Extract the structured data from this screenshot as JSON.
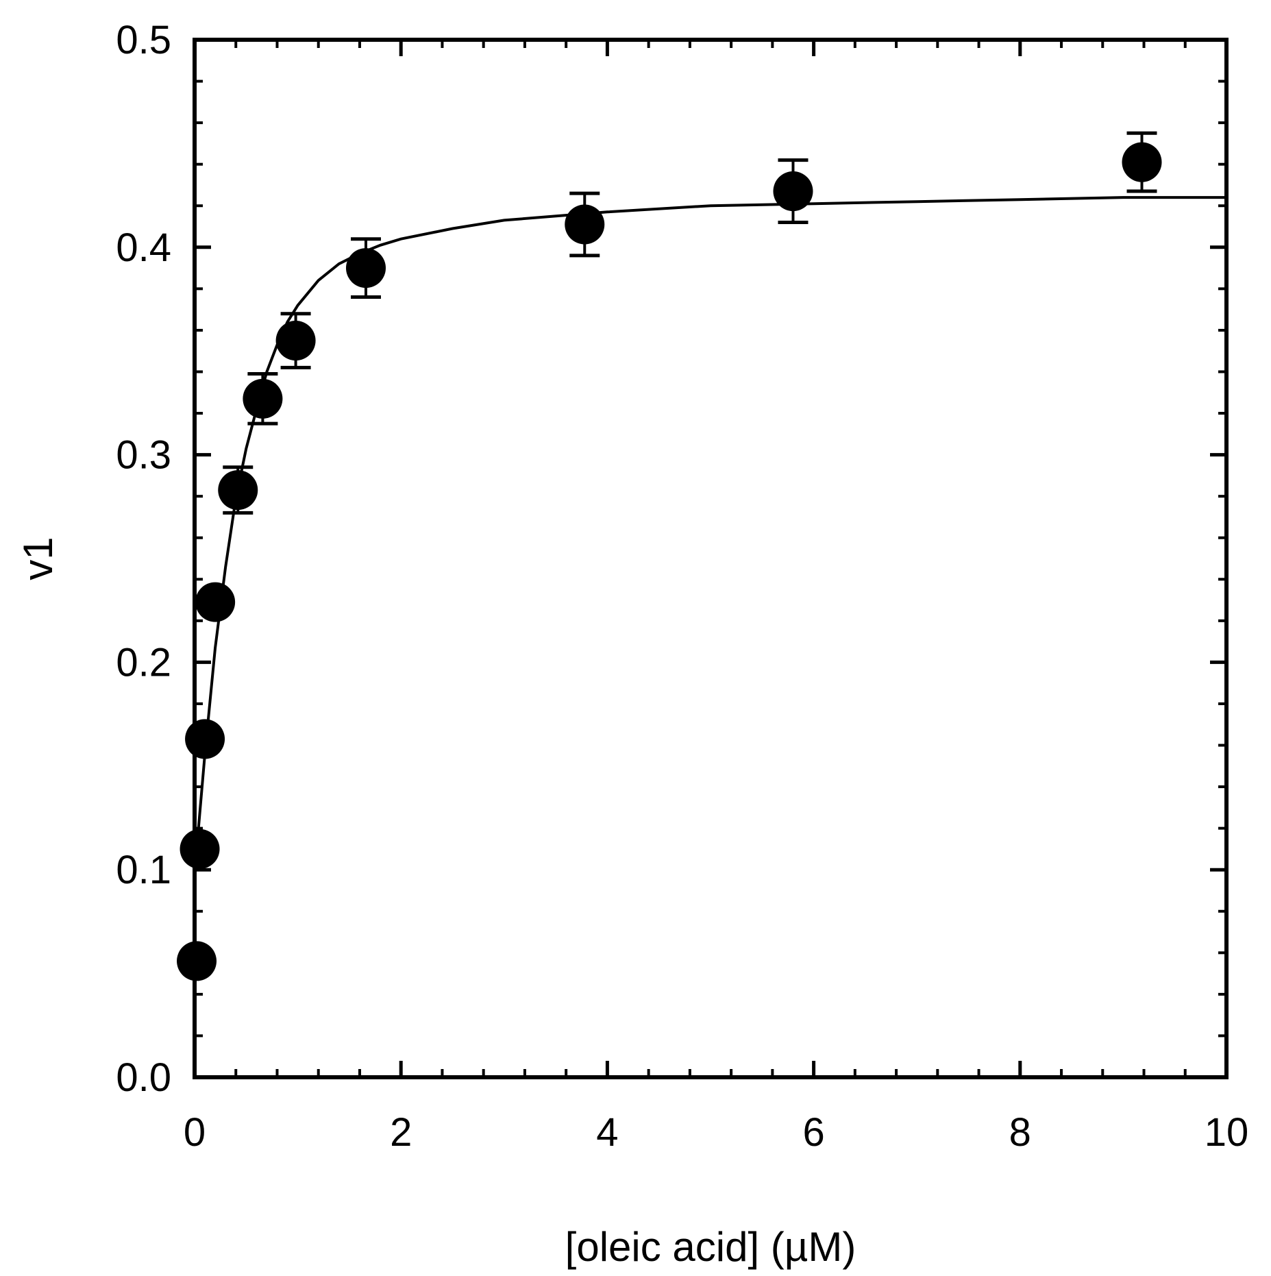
{
  "chart_data": {
    "type": "scatter",
    "xlabel": "[oleic acid] (µM)",
    "ylabel": "v1",
    "xlim": [
      0,
      10
    ],
    "ylim": [
      0.0,
      0.5
    ],
    "x_ticks": [
      "0",
      "2",
      "4",
      "6",
      "8",
      "10"
    ],
    "y_ticks": [
      "0.0",
      "0.1",
      "0.2",
      "0.3",
      "0.4",
      "0.5"
    ],
    "grid": false,
    "legend": "none",
    "series": [
      {
        "points": [
          {
            "x": 0.02,
            "y": 0.056,
            "err": 0
          },
          {
            "x": 0.05,
            "y": 0.11,
            "err": 0
          },
          {
            "x": 0.1,
            "y": 0.163,
            "err": 0
          },
          {
            "x": 0.2,
            "y": 0.229,
            "err": 0.005
          },
          {
            "x": 0.42,
            "y": 0.283,
            "err": 0.011
          },
          {
            "x": 0.66,
            "y": 0.327,
            "err": 0.012
          },
          {
            "x": 0.98,
            "y": 0.355,
            "err": 0.013
          },
          {
            "x": 1.66,
            "y": 0.39,
            "err": 0.014
          },
          {
            "x": 3.78,
            "y": 0.411,
            "err": 0.015
          },
          {
            "x": 5.8,
            "y": 0.427,
            "err": 0.015
          },
          {
            "x": 9.18,
            "y": 0.441,
            "err": 0.014
          }
        ]
      }
    ],
    "fit": {
      "model": "hyperbolic",
      "x": [
        0,
        0.05,
        0.1,
        0.2,
        0.3,
        0.4,
        0.5,
        0.6,
        0.7,
        0.8,
        0.9,
        1.0,
        1.2,
        1.4,
        1.6,
        1.8,
        2.0,
        2.5,
        3.0,
        4.0,
        5.0,
        6.0,
        7.0,
        8.0,
        9.0,
        10.0
      ],
      "y": [
        0.098,
        0.127,
        0.156,
        0.207,
        0.246,
        0.279,
        0.303,
        0.322,
        0.34,
        0.353,
        0.364,
        0.372,
        0.384,
        0.392,
        0.397,
        0.401,
        0.404,
        0.409,
        0.413,
        0.417,
        0.42,
        0.421,
        0.422,
        0.423,
        0.424,
        0.424
      ]
    },
    "colors": {
      "marker": "#000000",
      "line": "#000000",
      "axes": "#000000",
      "background": "#ffffff"
    }
  }
}
